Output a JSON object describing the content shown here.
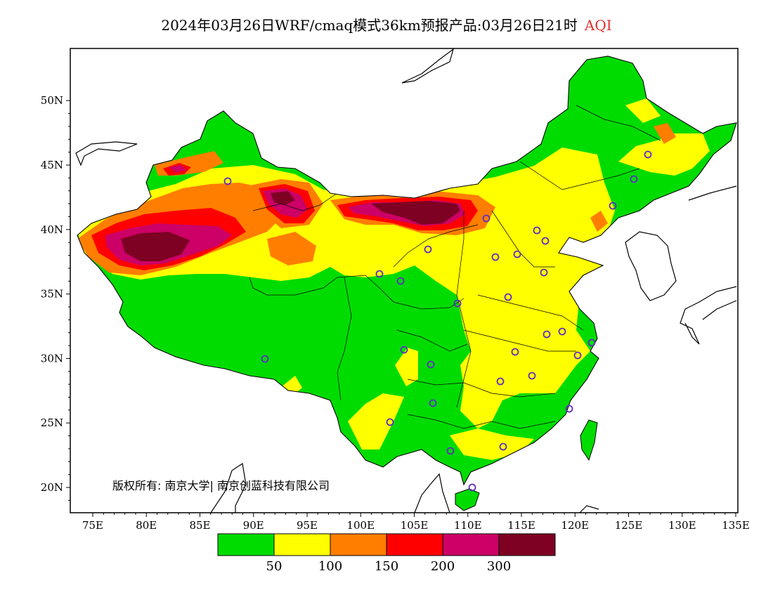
{
  "title": {
    "main": "2024年03月26日WRF/cmaq模式36km预报产品:03月26日21时",
    "variable": "AQI",
    "variable_color": "#e03030"
  },
  "map": {
    "lon_labels": [
      "75E",
      "80E",
      "85E",
      "90E",
      "95E",
      "100E",
      "105E",
      "110E",
      "115E",
      "120E",
      "125E",
      "130E",
      "135E"
    ],
    "lat_labels": [
      "20N",
      "25N",
      "30N",
      "35N",
      "40N",
      "45N",
      "50N"
    ],
    "copyright": "版权所有: 南京大学| 南京创蓝科技有限公司"
  },
  "legend": {
    "colors": [
      "#00dc00",
      "#ffff00",
      "#ff7e00",
      "#ff0000",
      "#cc0066",
      "#7e0023"
    ],
    "labels": [
      "50",
      "100",
      "150",
      "200",
      "300"
    ]
  },
  "stations_color": "#6030c0"
}
